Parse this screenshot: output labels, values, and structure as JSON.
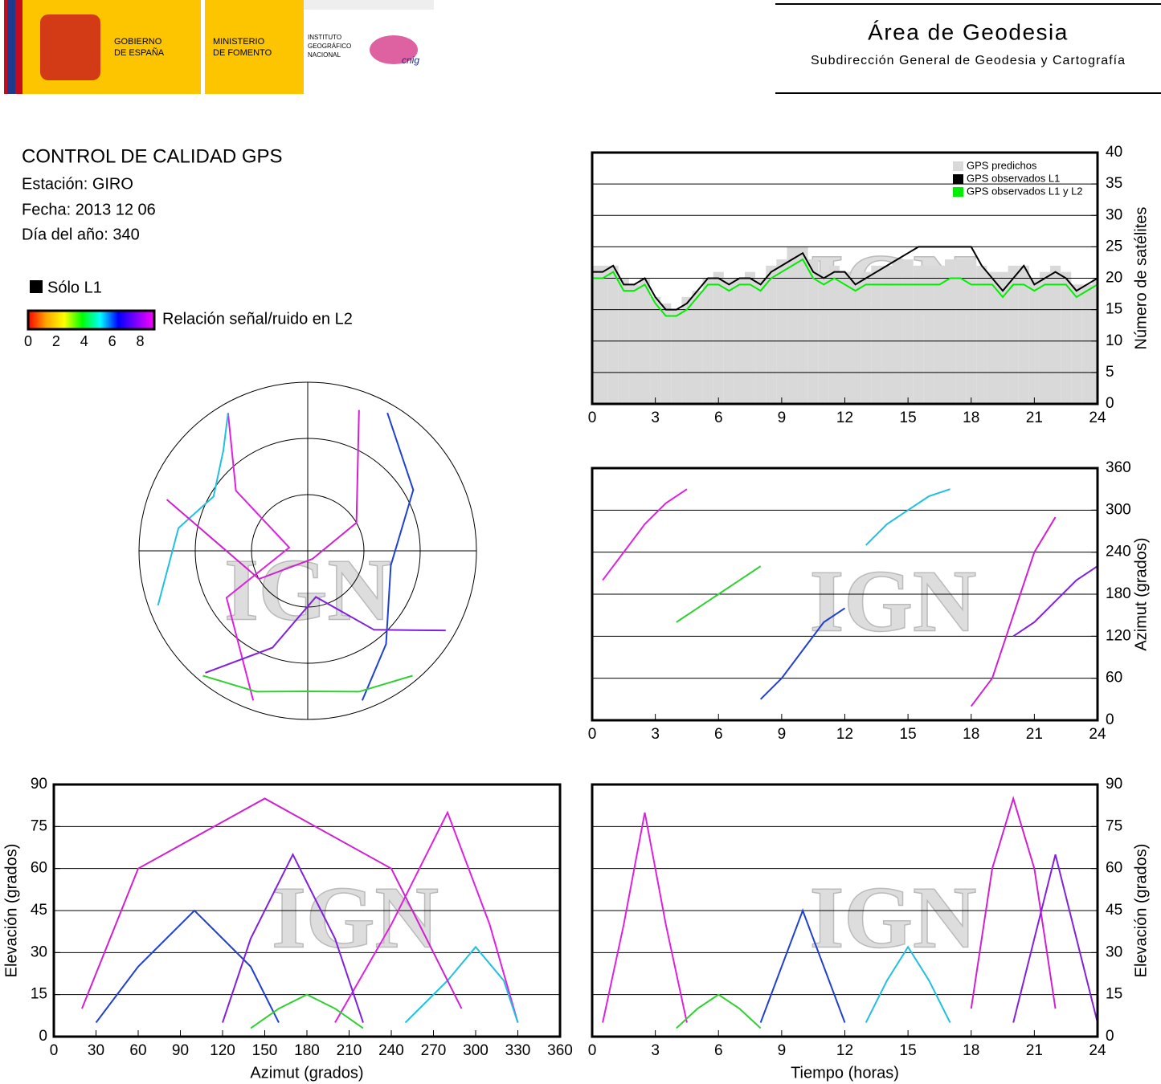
{
  "header": {
    "logos": {
      "gobierno": [
        "GOBIERNO",
        "DE ESPAÑA"
      ],
      "ministerio": [
        "MINISTERIO",
        "DE FOMENTO"
      ],
      "instituto": [
        "INSTITUTO",
        "GEOGRÁFICO",
        "NACIONAL"
      ],
      "cnig": "cnig"
    },
    "title": "Área de Geodesia",
    "subtitle": "Subdirección General de Geodesia y Cartografía"
  },
  "report": {
    "title": "CONTROL DE CALIDAD GPS",
    "station": "Estación: GIRO",
    "date": "Fecha: 2013 12 06",
    "doy": "Día del año: 340"
  },
  "legend": {
    "l1_only": "Sólo L1",
    "snr_label": "Relación señal/ruido en L2",
    "snr_lim": [
      0,
      9
    ],
    "snr_ticks": [
      0,
      2,
      4,
      6,
      8
    ],
    "snr_colors": [
      "#ff0000",
      "#ffa500",
      "#ffff00",
      "#00ff00",
      "#00ffff",
      "#0000ff",
      "#8000ff",
      "#ff00ff"
    ]
  },
  "watermark": "IGN",
  "chart_data": [
    {
      "type": "line",
      "y_label": "Número de satélites",
      "y_axis_side": "right",
      "grid": true,
      "legend": "upper right",
      "x": [
        0,
        0.5,
        1,
        1.5,
        2,
        2.5,
        3,
        3.5,
        4,
        4.5,
        5,
        5.5,
        6,
        6.5,
        7,
        7.5,
        8,
        8.5,
        9,
        9.5,
        10,
        10.5,
        11,
        11.5,
        12,
        12.5,
        13,
        13.5,
        14,
        14.5,
        15,
        15.5,
        16,
        16.5,
        17,
        17.5,
        18,
        18.5,
        19,
        19.5,
        20,
        20.5,
        21,
        21.5,
        22,
        22.5,
        23,
        23.5,
        24
      ],
      "xlim": [
        0,
        24
      ],
      "xticks": [
        0,
        3,
        6,
        9,
        12,
        15,
        18,
        21,
        24
      ],
      "ylim": [
        0,
        40
      ],
      "yticks": [
        0,
        5,
        10,
        15,
        20,
        25,
        30,
        35,
        40
      ],
      "series": [
        {
          "name": "GPS predichos",
          "color": "#d9d9d9",
          "style": "bar",
          "values": [
            22,
            22,
            22,
            20,
            19,
            20,
            17,
            16,
            15,
            17,
            18,
            20,
            21,
            20,
            20,
            21,
            20,
            22,
            23,
            25,
            25,
            23,
            21,
            22,
            21,
            20,
            21,
            22,
            22,
            23,
            23,
            22,
            22,
            22,
            23,
            23,
            23,
            22,
            21,
            21,
            22,
            22,
            20,
            21,
            22,
            21,
            19,
            19,
            20
          ]
        },
        {
          "name": "GPS observados L1",
          "color": "#000000",
          "values": [
            21,
            21,
            22,
            19,
            19,
            20,
            17,
            15,
            15,
            16,
            18,
            20,
            20,
            19,
            20,
            20,
            19,
            21,
            22,
            23,
            24,
            21,
            20,
            21,
            21,
            19,
            20,
            21,
            22,
            23,
            24,
            25,
            25,
            25,
            25,
            25,
            25,
            22,
            20,
            18,
            20,
            22,
            19,
            20,
            21,
            20,
            18,
            19,
            20
          ]
        },
        {
          "name": "GPS observados L1 y L2",
          "color": "#00ee00",
          "values": [
            20,
            20,
            21,
            18,
            18,
            19,
            16,
            14,
            14,
            15,
            17,
            19,
            19,
            18,
            19,
            19,
            18,
            20,
            21,
            22,
            23,
            20,
            19,
            20,
            19,
            18,
            19,
            19,
            19,
            19,
            19,
            19,
            19,
            19,
            20,
            20,
            19,
            19,
            19,
            17,
            19,
            19,
            18,
            19,
            19,
            19,
            17,
            18,
            19
          ]
        }
      ]
    },
    {
      "type": "polar",
      "rlim": [
        90,
        0
      ],
      "rticks": [
        0,
        30,
        60
      ],
      "series": [
        {
          "color": "#e020e0",
          "azimuth": [
            200,
            240,
            280,
            310,
            330
          ],
          "elevation": [
            5,
            40,
            80,
            40,
            5
          ]
        },
        {
          "color": "#2040d0",
          "azimuth": [
            30,
            60,
            100,
            140,
            160
          ],
          "elevation": [
            5,
            25,
            45,
            25,
            5
          ]
        },
        {
          "color": "#20c0e0",
          "azimuth": [
            250,
            280,
            300,
            320,
            330
          ],
          "elevation": [
            5,
            20,
            32,
            20,
            5
          ]
        },
        {
          "color": "#30d030",
          "azimuth": [
            140,
            160,
            180,
            200,
            220
          ],
          "elevation": [
            3,
            10,
            15,
            10,
            3
          ]
        },
        {
          "color": "#d020d0",
          "azimuth": [
            20,
            60,
            150,
            240,
            290
          ],
          "elevation": [
            10,
            60,
            85,
            60,
            10
          ]
        },
        {
          "color": "#8020e0",
          "azimuth": [
            120,
            140,
            170,
            200,
            220
          ],
          "elevation": [
            5,
            35,
            65,
            35,
            5
          ]
        }
      ]
    },
    {
      "type": "line",
      "y_label": "Azimut (grados)",
      "y_axis_side": "right",
      "grid": true,
      "xlim": [
        0,
        24
      ],
      "xticks": [
        0,
        3,
        6,
        9,
        12,
        15,
        18,
        21,
        24
      ],
      "ylim": [
        0,
        360
      ],
      "yticks": [
        0,
        60,
        120,
        180,
        240,
        300,
        360
      ],
      "series": [
        {
          "color": "#e020e0",
          "x": [
            0.5,
            1.5,
            2.5,
            3.5,
            4.5
          ],
          "values": [
            200,
            240,
            280,
            310,
            330
          ]
        },
        {
          "color": "#2040d0",
          "x": [
            8,
            9,
            10,
            11,
            12
          ],
          "values": [
            30,
            60,
            100,
            140,
            160
          ]
        },
        {
          "color": "#20c0e0",
          "x": [
            13,
            14,
            15,
            16,
            17
          ],
          "values": [
            250,
            280,
            300,
            320,
            330
          ]
        },
        {
          "color": "#30d030",
          "x": [
            4,
            5,
            6,
            7,
            8
          ],
          "values": [
            140,
            160,
            180,
            200,
            220
          ]
        },
        {
          "color": "#d020d0",
          "x": [
            18,
            19,
            20,
            21,
            22
          ],
          "values": [
            20,
            60,
            150,
            240,
            290
          ]
        },
        {
          "color": "#8020e0",
          "x": [
            20,
            21,
            22,
            23,
            24
          ],
          "values": [
            120,
            140,
            170,
            200,
            220
          ]
        }
      ]
    },
    {
      "type": "line",
      "x_label": "Azimut (grados)",
      "y_label": "Elevación (grados)",
      "y_axis_side": "left",
      "grid": true,
      "xlim": [
        0,
        360
      ],
      "xticks": [
        0,
        30,
        60,
        90,
        120,
        150,
        180,
        210,
        240,
        270,
        300,
        330,
        360
      ],
      "ylim": [
        0,
        90
      ],
      "yticks": [
        0,
        15,
        30,
        45,
        60,
        75,
        90
      ],
      "series": [
        {
          "color": "#e020e0",
          "x": [
            200,
            240,
            280,
            310,
            330
          ],
          "values": [
            5,
            40,
            80,
            40,
            5
          ]
        },
        {
          "color": "#2040d0",
          "x": [
            30,
            60,
            100,
            140,
            160
          ],
          "values": [
            5,
            25,
            45,
            25,
            5
          ]
        },
        {
          "color": "#20c0e0",
          "x": [
            250,
            280,
            300,
            320,
            330
          ],
          "values": [
            5,
            20,
            32,
            20,
            5
          ]
        },
        {
          "color": "#30d030",
          "x": [
            140,
            160,
            180,
            200,
            220
          ],
          "values": [
            3,
            10,
            15,
            10,
            3
          ]
        },
        {
          "color": "#d020d0",
          "x": [
            20,
            60,
            150,
            240,
            290
          ],
          "values": [
            10,
            60,
            85,
            60,
            10
          ]
        },
        {
          "color": "#8020e0",
          "x": [
            120,
            140,
            170,
            200,
            220
          ],
          "values": [
            5,
            35,
            65,
            35,
            5
          ]
        }
      ]
    },
    {
      "type": "line",
      "x_label": "Tiempo (horas)",
      "y_label": "Elevación (grados)",
      "y_axis_side": "right",
      "grid": true,
      "xlim": [
        0,
        24
      ],
      "xticks": [
        0,
        3,
        6,
        9,
        12,
        15,
        18,
        21,
        24
      ],
      "ylim": [
        0,
        90
      ],
      "yticks": [
        0,
        15,
        30,
        45,
        60,
        75,
        90
      ],
      "series": [
        {
          "color": "#e020e0",
          "x": [
            0.5,
            1.5,
            2.5,
            3.5,
            4.5
          ],
          "values": [
            5,
            40,
            80,
            40,
            5
          ]
        },
        {
          "color": "#2040d0",
          "x": [
            8,
            9,
            10,
            11,
            12
          ],
          "values": [
            5,
            25,
            45,
            25,
            5
          ]
        },
        {
          "color": "#20c0e0",
          "x": [
            13,
            14,
            15,
            16,
            17
          ],
          "values": [
            5,
            20,
            32,
            20,
            5
          ]
        },
        {
          "color": "#30d030",
          "x": [
            4,
            5,
            6,
            7,
            8
          ],
          "values": [
            3,
            10,
            15,
            10,
            3
          ]
        },
        {
          "color": "#d020d0",
          "x": [
            18,
            19,
            20,
            21,
            22
          ],
          "values": [
            10,
            60,
            85,
            60,
            10
          ]
        },
        {
          "color": "#8020e0",
          "x": [
            20,
            21,
            22,
            23,
            24
          ],
          "values": [
            5,
            35,
            65,
            35,
            5
          ]
        }
      ]
    }
  ]
}
